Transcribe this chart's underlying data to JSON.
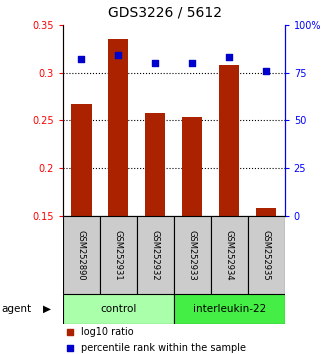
{
  "title": "GDS3226 / 5612",
  "samples": [
    "GSM252890",
    "GSM252931",
    "GSM252932",
    "GSM252933",
    "GSM252934",
    "GSM252935"
  ],
  "groups": [
    "control",
    "control",
    "control",
    "interleukin-22",
    "interleukin-22",
    "interleukin-22"
  ],
  "log10_ratio": [
    0.267,
    0.335,
    0.258,
    0.254,
    0.308,
    0.158
  ],
  "percentile_rank": [
    82,
    84,
    80,
    80,
    83,
    76
  ],
  "bar_color": "#aa2200",
  "dot_color": "#0000cc",
  "ylim_left": [
    0.15,
    0.35
  ],
  "ylim_right": [
    0,
    100
  ],
  "yticks_left": [
    0.15,
    0.2,
    0.25,
    0.3,
    0.35
  ],
  "yticks_right": [
    0,
    25,
    50,
    75,
    100
  ],
  "ytick_labels_left": [
    "0.15",
    "0.2",
    "0.25",
    "0.3",
    "0.35"
  ],
  "ytick_labels_right": [
    "0",
    "25",
    "50",
    "75",
    "100%"
  ],
  "group_colors": {
    "control": "#aaffaa",
    "interleukin-22": "#44ee44"
  },
  "agent_label": "agent",
  "legend_bar_label": "log10 ratio",
  "legend_dot_label": "percentile rank within the sample",
  "bar_width": 0.55,
  "figsize": [
    3.31,
    3.54
  ],
  "dpi": 100
}
